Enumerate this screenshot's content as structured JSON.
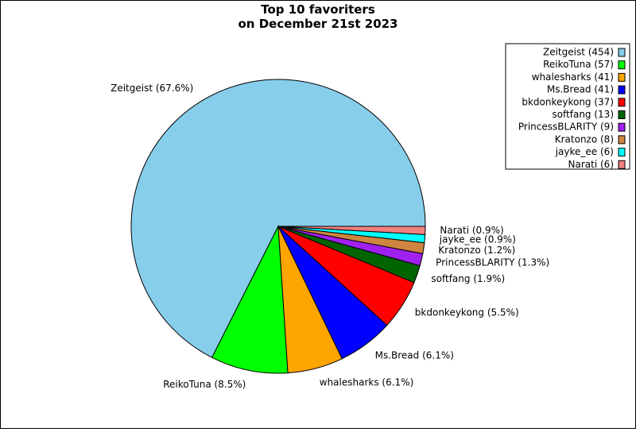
{
  "chart_data": {
    "type": "pie",
    "title": "Top 10 favoriters\non December 21st 2023",
    "values": [
      454,
      57,
      41,
      41,
      37,
      13,
      9,
      8,
      6,
      6
    ],
    "legend_labels": [
      "Zeitgeist (454)",
      "ReikoTuna (57)",
      "whalesharks (41)",
      "Ms.Bread (41)",
      "bkdonkeykong (37)",
      "softfang (13)",
      "PrincessBLARITY (9)",
      "Kratonzo (8)",
      "jayke_ee (6)",
      "Narati (6)"
    ],
    "value_labels": [
      "Zeitgeist (67.6%)",
      "ReikoTuna (8.5%)",
      "whalesharks (6.1%)",
      "Ms.Bread (6.1%)",
      "bkdonkeykong (5.5%)",
      "softfang (1.9%)",
      "PrincessBLARITY (1.3%)",
      "Kratonzo (1.2%)",
      "jayke_ee (0.9%)",
      "Narati (0.9%)"
    ],
    "colors": [
      "#87ceeb",
      "#00ff00",
      "#ffa500",
      "#0000ff",
      "#ff0000",
      "#006400",
      "#a020f0",
      "#cd853f",
      "#00ffff",
      "#f08080"
    ],
    "legend": "upper right"
  }
}
